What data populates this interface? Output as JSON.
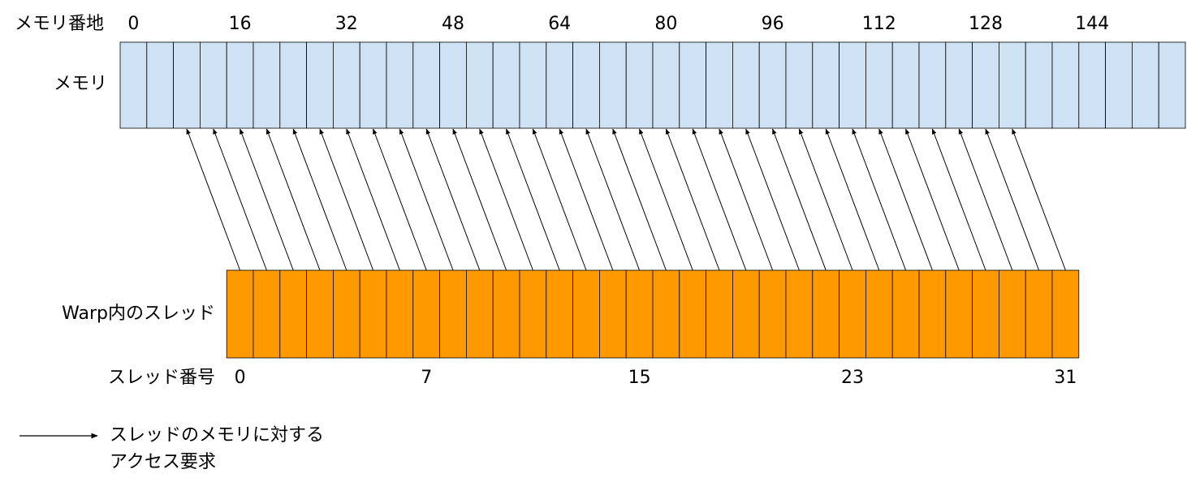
{
  "memory_address_header": "メモリ番地",
  "memory_addresses": [
    0,
    16,
    32,
    48,
    64,
    80,
    96,
    112,
    128,
    144
  ],
  "memory_label": "メモリ",
  "warp_label": "Warp内のスレッド",
  "thread_number_header": "スレッド番号",
  "thread_numbers": [
    0,
    7,
    15,
    23,
    31
  ],
  "legend": {
    "lines": [
      "スレッドのメモリに対する",
      "アクセス要求"
    ]
  }
}
